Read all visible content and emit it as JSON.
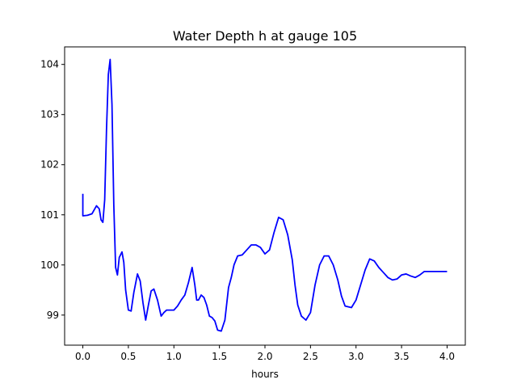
{
  "chart_data": {
    "type": "line",
    "title": "Water Depth h at gauge 105",
    "xlabel": "hours",
    "ylabel": "",
    "xlim": [
      -0.2,
      4.2
    ],
    "ylim": [
      98.4,
      104.35
    ],
    "xticks": [
      0.0,
      0.5,
      1.0,
      1.5,
      2.0,
      2.5,
      3.0,
      3.5,
      4.0
    ],
    "xtick_labels": [
      "0.0",
      "0.5",
      "1.0",
      "1.5",
      "2.0",
      "2.5",
      "3.0",
      "3.5",
      "4.0"
    ],
    "yticks": [
      99,
      100,
      101,
      102,
      103,
      104
    ],
    "ytick_labels": [
      "99",
      "100",
      "101",
      "102",
      "103",
      "104"
    ],
    "grid": false,
    "series": [
      {
        "color": "#0000ff",
        "x": [
          0.0,
          0.0,
          0.05,
          0.1,
          0.15,
          0.18,
          0.2,
          0.22,
          0.24,
          0.26,
          0.28,
          0.3,
          0.32,
          0.34,
          0.36,
          0.38,
          0.4,
          0.43,
          0.45,
          0.47,
          0.5,
          0.53,
          0.56,
          0.6,
          0.63,
          0.66,
          0.69,
          0.72,
          0.75,
          0.78,
          0.82,
          0.86,
          0.89,
          0.92,
          0.96,
          1.0,
          1.04,
          1.08,
          1.12,
          1.16,
          1.2,
          1.23,
          1.25,
          1.27,
          1.3,
          1.33,
          1.36,
          1.39,
          1.42,
          1.45,
          1.48,
          1.52,
          1.56,
          1.6,
          1.63,
          1.66,
          1.7,
          1.75,
          1.8,
          1.85,
          1.9,
          1.95,
          2.0,
          2.05,
          2.1,
          2.15,
          2.2,
          2.25,
          2.3,
          2.33,
          2.36,
          2.4,
          2.45,
          2.5,
          2.55,
          2.6,
          2.65,
          2.7,
          2.75,
          2.8,
          2.84,
          2.88,
          2.95,
          3.0,
          3.05,
          3.1,
          3.15,
          3.2,
          3.25,
          3.3,
          3.35,
          3.4,
          3.45,
          3.5,
          3.55,
          3.6,
          3.65,
          3.7,
          3.75,
          3.8,
          3.85,
          3.9,
          3.95,
          4.0
        ],
        "y": [
          101.42,
          100.98,
          100.99,
          101.02,
          101.18,
          101.12,
          100.9,
          100.85,
          101.3,
          102.7,
          103.8,
          104.1,
          103.2,
          101.2,
          99.95,
          99.8,
          100.15,
          100.26,
          100.05,
          99.5,
          99.1,
          99.08,
          99.45,
          99.82,
          99.68,
          99.25,
          98.9,
          99.2,
          99.48,
          99.52,
          99.3,
          98.98,
          99.05,
          99.1,
          99.1,
          99.1,
          99.18,
          99.3,
          99.4,
          99.65,
          99.95,
          99.6,
          99.3,
          99.3,
          99.4,
          99.35,
          99.2,
          98.98,
          98.95,
          98.88,
          98.7,
          98.68,
          98.9,
          99.55,
          99.75,
          100.0,
          100.18,
          100.2,
          100.3,
          100.4,
          100.4,
          100.35,
          100.22,
          100.3,
          100.65,
          100.95,
          100.9,
          100.6,
          100.1,
          99.6,
          99.2,
          98.98,
          98.9,
          99.05,
          99.6,
          100.0,
          100.18,
          100.18,
          100.0,
          99.7,
          99.38,
          99.18,
          99.15,
          99.3,
          99.6,
          99.9,
          100.12,
          100.08,
          99.95,
          99.85,
          99.75,
          99.7,
          99.72,
          99.8,
          99.82,
          99.78,
          99.75,
          99.8,
          99.87,
          99.87,
          99.87,
          99.87,
          99.87,
          99.87
        ]
      }
    ]
  }
}
